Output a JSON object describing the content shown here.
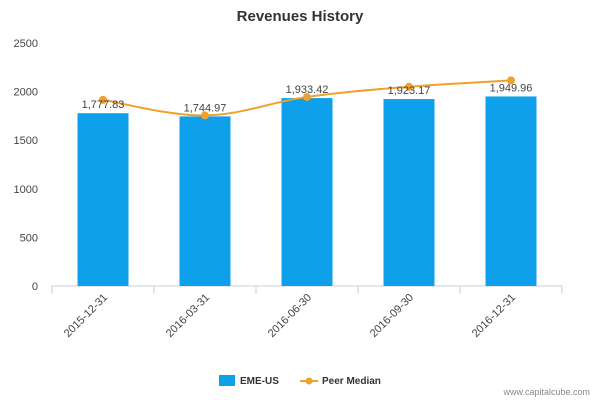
{
  "chart_data": {
    "type": "bar",
    "title": "Revenues History",
    "xlabel": "",
    "ylabel": "",
    "ylim": [
      0,
      2500
    ],
    "yticks": [
      "0",
      "500",
      "1000",
      "1500",
      "2000",
      "2500"
    ],
    "categories": [
      "2015-12-31",
      "2016-03-31",
      "2016-06-30",
      "2016-09-30",
      "2016-12-31"
    ],
    "series": [
      {
        "name": "EME-US",
        "type": "bar",
        "color": "#0ea0ea",
        "values": [
          1777.83,
          1744.97,
          1933.42,
          1923.17,
          1949.96
        ],
        "labels": [
          "1,777.83",
          "1,744.97",
          "1,933.42",
          "1,923.17",
          "1,949.96"
        ]
      },
      {
        "name": "Peer Median",
        "type": "line",
        "color": "#f0a12a",
        "values": [
          1915,
          1755,
          1945,
          2050,
          2115
        ]
      }
    ],
    "grid": false,
    "legend": "bottom-center"
  },
  "credit": "www.capitalcube.com"
}
